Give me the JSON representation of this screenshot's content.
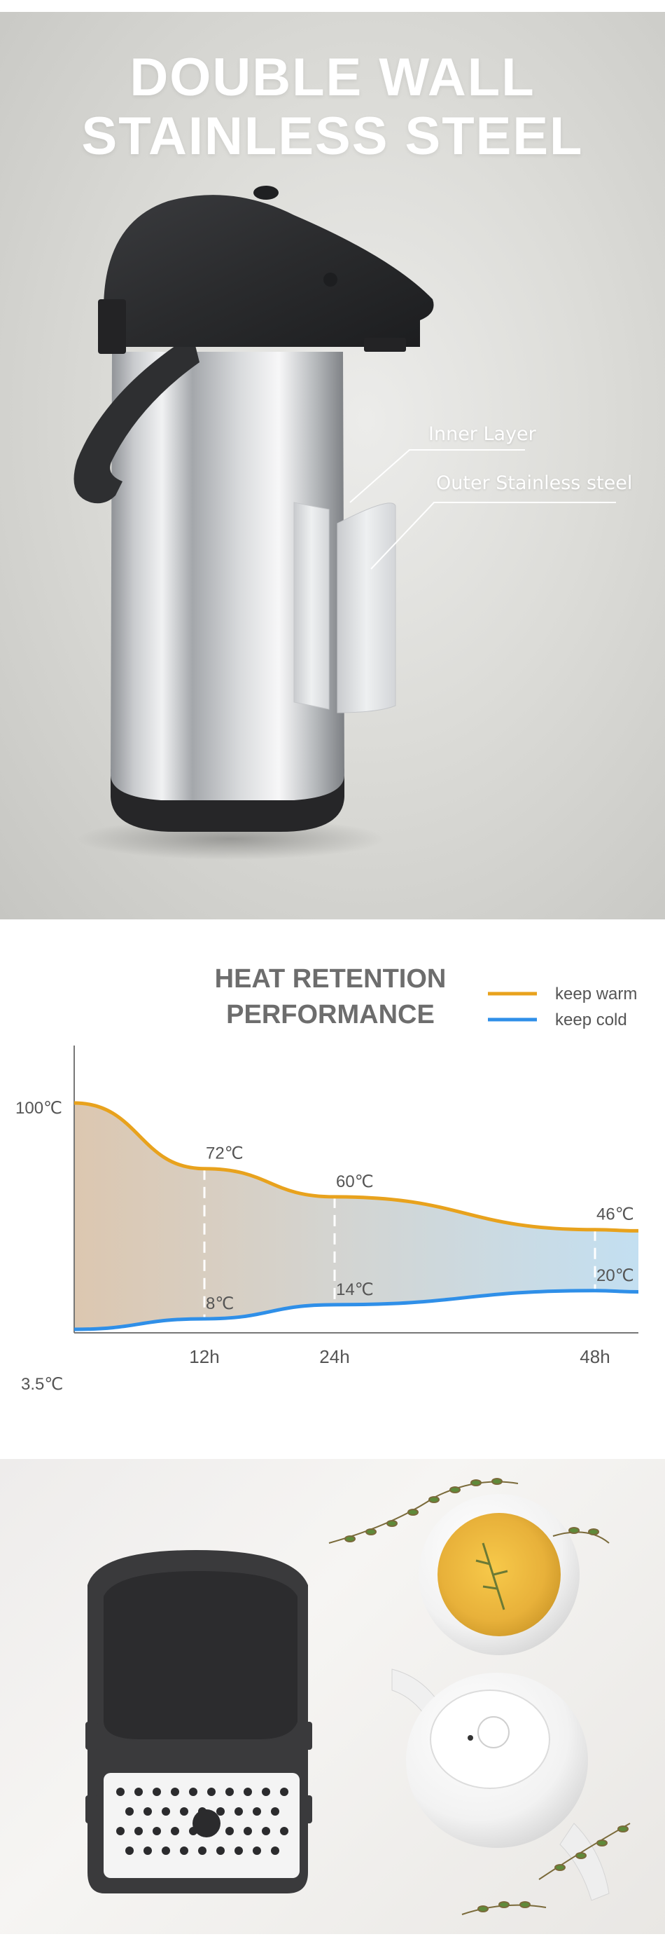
{
  "hero": {
    "title_line1": "DOUBLE WALL",
    "title_line2": "STAINLESS STEEL",
    "callout_inner": "Inner Layer",
    "callout_outer": "Outer Stainless steel"
  },
  "performance": {
    "title_line1": "HEAT RETENTION",
    "title_line2": "PERFORMANCE",
    "legend": [
      {
        "label": "keep warm",
        "color": "#e8a21d"
      },
      {
        "label": "keep cold",
        "color": "#2f8fe8"
      }
    ],
    "y_top_label": "100℃",
    "y_bottom_label": "3.5℃"
  },
  "chart_data": {
    "type": "line",
    "title": "HEAT RETENTION PERFORMANCE",
    "xlabel": "",
    "ylabel": "",
    "x_ticks": [
      "12h",
      "24h",
      "48h"
    ],
    "y_ticks": [
      "100℃",
      "3.5℃"
    ],
    "legend_position": "top-right",
    "series": [
      {
        "name": "keep warm",
        "color": "#e8a21d",
        "points": [
          {
            "x": 12,
            "y": 72,
            "label": "72℃"
          },
          {
            "x": 24,
            "y": 60,
            "label": "60℃"
          },
          {
            "x": 48,
            "y": 46,
            "label": "46℃"
          }
        ]
      },
      {
        "name": "keep cold",
        "color": "#2f8fe8",
        "points": [
          {
            "x": 12,
            "y": 8,
            "label": "8℃"
          },
          {
            "x": 24,
            "y": 14,
            "label": "14℃"
          },
          {
            "x": 48,
            "y": 20,
            "label": "20℃"
          }
        ]
      }
    ]
  },
  "colors": {
    "flask_black": "#2b2b2d",
    "steel": "#b9bcc0",
    "warm_fill": "#dcc7b0",
    "cold_fill": "#c3dff1"
  },
  "icons": [
    "airpot-flask-image",
    "drip-tray-image",
    "tea-cup-image",
    "teapot-image",
    "thyme-sprig-image"
  ]
}
